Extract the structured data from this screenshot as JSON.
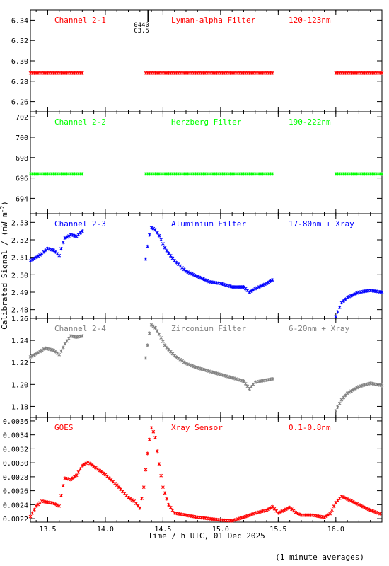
{
  "colors": {
    "red": "#ff0000",
    "green": "#00ff00",
    "blue": "#0000ff",
    "gray": "#808080",
    "axis": "#000000"
  },
  "chart_data": {
    "type": "scatter",
    "marker": "asterisk",
    "ylabel": "Calibrated Signal / (mW m",
    "ylabel_sup": "-2",
    "ylabel_close": ")",
    "xlabel": "Time / h UTC, 01 Dec 2025",
    "footnote": "(1 minute averages)",
    "xlim": [
      13.35,
      16.4
    ],
    "xticks": [
      13.5,
      14.0,
      14.5,
      15.0,
      15.5,
      16.0
    ],
    "xtick_labels": [
      "13.5",
      "14.0",
      "14.5",
      "15.0",
      "15.5",
      "16.0"
    ],
    "event_marker": {
      "x": 14.37,
      "labels": [
        "0440",
        "C3.5"
      ]
    },
    "panels": [
      {
        "channel": "Channel 2-1",
        "filter": "Lyman-alpha Filter",
        "band": "120-123nm",
        "color": "red",
        "ylim": [
          6.25,
          6.35
        ],
        "yticks": [
          "6.26",
          "6.28",
          "6.30",
          "6.32",
          "6.34"
        ],
        "segments": [
          {
            "x": [
              13.35,
              13.8
            ],
            "y": [
              6.288,
              6.288
            ]
          },
          {
            "x": [
              14.35,
              15.45
            ],
            "y": [
              6.288,
              6.288
            ]
          },
          {
            "x": [
              16.0,
              16.4
            ],
            "y": [
              6.288,
              6.288
            ]
          }
        ]
      },
      {
        "channel": "Channel 2-2",
        "filter": "Herzberg Filter",
        "band": "190-222nm",
        "color": "green",
        "ylim": [
          692.5,
          702.5
        ],
        "yticks": [
          "694",
          "696",
          "698",
          "700",
          "702"
        ],
        "segments": [
          {
            "x": [
              13.35,
              13.8
            ],
            "y": [
              696.4,
              696.4
            ]
          },
          {
            "x": [
              14.35,
              15.45
            ],
            "y": [
              696.4,
              696.4
            ]
          },
          {
            "x": [
              16.0,
              16.4
            ],
            "y": [
              696.4,
              696.4
            ]
          }
        ]
      },
      {
        "channel": "Channel 2-3",
        "filter": "Aluminium Filter",
        "band": "17-80nm + Xray",
        "color": "blue",
        "ylim": [
          2.475,
          2.535
        ],
        "yticks": [
          "2.48",
          "2.49",
          "2.50",
          "2.51",
          "2.52",
          "2.53"
        ],
        "segments": [
          {
            "x": [
              13.35,
              13.45,
              13.5,
              13.55,
              13.6,
              13.63,
              13.65,
              13.68,
              13.7,
              13.75,
              13.8
            ],
            "y": [
              2.508,
              2.512,
              2.515,
              2.514,
              2.511,
              2.518,
              2.521,
              2.522,
              2.523,
              2.522,
              2.525
            ]
          },
          {
            "x": [
              14.35,
              14.38,
              14.4,
              14.43,
              14.47,
              14.52,
              14.6,
              14.7,
              14.8,
              14.9,
              15.0,
              15.1,
              15.2,
              15.25,
              15.3,
              15.4,
              15.45
            ],
            "y": [
              2.509,
              2.522,
              2.527,
              2.526,
              2.522,
              2.515,
              2.508,
              2.502,
              2.499,
              2.496,
              2.495,
              2.493,
              2.493,
              2.49,
              2.492,
              2.495,
              2.497
            ]
          },
          {
            "x": [
              16.0,
              16.05,
              16.1,
              16.2,
              16.3,
              16.4
            ],
            "y": [
              2.476,
              2.484,
              2.487,
              2.49,
              2.491,
              2.49
            ]
          }
        ]
      },
      {
        "channel": "Channel 2-4",
        "filter": "Zirconium Filter",
        "band": "6-20nm + Xray",
        "color": "gray",
        "ylim": [
          1.17,
          1.26
        ],
        "yticks": [
          "1.18",
          "1.20",
          "1.22",
          "1.24",
          "1.26"
        ],
        "segments": [
          {
            "x": [
              13.35,
              13.42,
              13.48,
              13.55,
              13.6,
              13.65,
              13.7,
              13.75,
              13.8
            ],
            "y": [
              1.225,
              1.229,
              1.233,
              1.231,
              1.227,
              1.237,
              1.244,
              1.243,
              1.244
            ]
          },
          {
            "x": [
              14.35,
              14.38,
              14.4,
              14.43,
              14.47,
              14.52,
              14.6,
              14.7,
              14.8,
              14.9,
              15.0,
              15.1,
              15.2,
              15.25,
              15.3,
              15.4,
              15.45
            ],
            "y": [
              1.224,
              1.245,
              1.254,
              1.252,
              1.245,
              1.235,
              1.226,
              1.219,
              1.215,
              1.212,
              1.209,
              1.206,
              1.203,
              1.196,
              1.202,
              1.204,
              1.205
            ]
          },
          {
            "x": [
              16.0,
              16.05,
              16.1,
              16.2,
              16.3,
              16.4
            ],
            "y": [
              1.176,
              1.186,
              1.192,
              1.198,
              1.201,
              1.199
            ]
          }
        ]
      },
      {
        "channel": "GOES",
        "filter": "Xray Sensor",
        "band": "0.1-0.8nm",
        "color": "red",
        "ylim": [
          0.00215,
          0.00365
        ],
        "yticks": [
          "0.0022",
          "0.0024",
          "0.0026",
          "0.0028",
          "0.0030",
          "0.0032",
          "0.0034",
          "0.0036"
        ],
        "segments": [
          {
            "x": [
              13.35,
              13.4,
              13.45,
              13.55,
              13.6,
              13.63,
              13.65,
              13.7,
              13.75,
              13.8,
              13.85,
              13.9,
              14.0,
              14.1,
              14.2,
              14.25,
              14.3,
              14.33,
              14.36,
              14.38,
              14.4,
              14.43,
              14.46,
              14.5,
              14.55,
              14.6,
              14.7,
              14.8,
              14.9,
              15.0,
              15.1,
              15.2,
              15.3,
              15.4,
              15.45,
              15.5,
              15.55,
              15.6,
              15.65,
              15.7,
              15.8,
              15.9,
              15.95,
              16.0,
              16.05,
              16.1,
              16.2,
              16.3,
              16.4
            ],
            "y": [
              0.00223,
              0.00238,
              0.00245,
              0.00242,
              0.00238,
              0.00265,
              0.00278,
              0.00276,
              0.00282,
              0.00296,
              0.00301,
              0.00295,
              0.00283,
              0.00268,
              0.0025,
              0.00245,
              0.00235,
              0.0026,
              0.00305,
              0.0033,
              0.0035,
              0.0034,
              0.00305,
              0.00265,
              0.0024,
              0.00228,
              0.00225,
              0.00222,
              0.0022,
              0.00218,
              0.00217,
              0.00222,
              0.00228,
              0.00232,
              0.00237,
              0.00228,
              0.00232,
              0.00236,
              0.00229,
              0.00225,
              0.00225,
              0.00222,
              0.00227,
              0.00243,
              0.00252,
              0.00248,
              0.0024,
              0.00232,
              0.00226
            ]
          }
        ]
      }
    ]
  }
}
